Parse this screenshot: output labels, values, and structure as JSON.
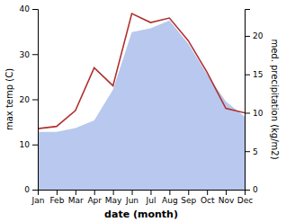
{
  "chart_data": {
    "type": "line",
    "categories": [
      "Jan",
      "Feb",
      "Mar",
      "Apr",
      "May",
      "Jun",
      "Jul",
      "Aug",
      "Sep",
      "Oct",
      "Nov",
      "Dec"
    ],
    "xlabel": "date (month)",
    "ylabel": "max temp (C)",
    "y2label": "med. precipitation (kg/m2)",
    "ylim": [
      0,
      40
    ],
    "yticks": [
      0,
      10,
      20,
      30,
      40
    ],
    "y2lim": [
      0,
      23.5
    ],
    "y2ticks": [
      0,
      5,
      10,
      15,
      20
    ],
    "grid": false,
    "series": [
      {
        "type": "area",
        "axis": "y2",
        "color": "#b8c8ee",
        "values": [
          7.5,
          7.5,
          8.0,
          9.0,
          13.0,
          20.5,
          21.0,
          22.0,
          19.0,
          15.0,
          11.5,
          9.5
        ]
      },
      {
        "type": "line",
        "color": "#b03030",
        "values": [
          13.5,
          14.0,
          17.5,
          27.0,
          23.0,
          39.0,
          37.0,
          38.0,
          33.0,
          26.0,
          18.0,
          17.0
        ]
      }
    ]
  }
}
